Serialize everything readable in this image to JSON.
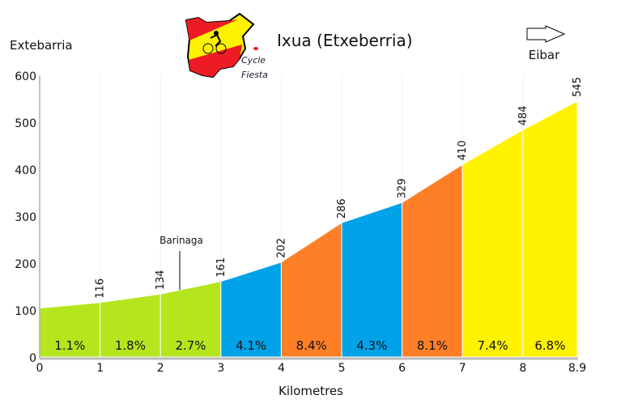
{
  "header": {
    "title": "Ixua (Etxeberria)",
    "start_label": "Extebarria",
    "end_label": "Eibar",
    "logo_text": [
      "Cycle",
      "Fiesta"
    ],
    "direction_icon": "arrow-right-icon"
  },
  "chart_data": {
    "type": "area",
    "title": "Ixua (Etxeberria)",
    "xlabel": "Kilometres",
    "ylabel": "",
    "xlim": [
      0,
      8.9
    ],
    "ylim": [
      0,
      600
    ],
    "yticks": [
      "0",
      "100",
      "200",
      "300",
      "400",
      "500",
      "600"
    ],
    "xticks": [
      "0",
      "1",
      "2",
      "3",
      "4",
      "5",
      "6",
      "7",
      "8",
      "8.9"
    ],
    "x": [
      0,
      1,
      2,
      3,
      4,
      5,
      6,
      7,
      8,
      8.9
    ],
    "elevation": [
      104,
      116,
      134,
      161,
      202,
      286,
      329,
      410,
      484,
      545
    ],
    "point_labels": [
      "116",
      "134",
      "161",
      "202",
      "286",
      "329",
      "410",
      "484",
      "545"
    ],
    "segments": [
      {
        "gradient": "1.1%",
        "color": "#b5e61d"
      },
      {
        "gradient": "1.8%",
        "color": "#b5e61d"
      },
      {
        "gradient": "2.7%",
        "color": "#b5e61d"
      },
      {
        "gradient": "4.1%",
        "color": "#00a2e8"
      },
      {
        "gradient": "8.4%",
        "color": "#ff7f27"
      },
      {
        "gradient": "4.3%",
        "color": "#00a2e8"
      },
      {
        "gradient": "8.1%",
        "color": "#ff7f27"
      },
      {
        "gradient": "7.4%",
        "color": "#fff200"
      },
      {
        "gradient": "6.8%",
        "color": "#fff200"
      }
    ],
    "annotations": [
      {
        "text": "Barinaga",
        "x": 2.35
      }
    ],
    "grid": "vertical"
  }
}
